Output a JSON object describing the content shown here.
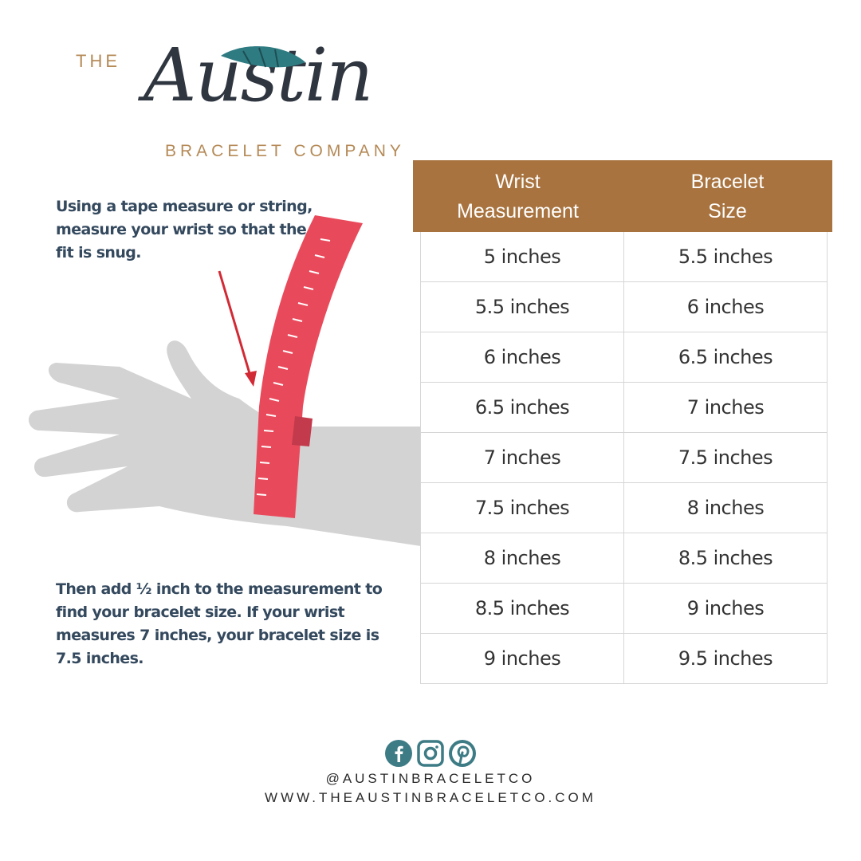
{
  "brand": {
    "the": "THE",
    "name": "Austin",
    "subtitle": "BRACELET COMPANY",
    "accent_color": "#a8733f",
    "teal_color": "#3d7b85"
  },
  "instructions": {
    "step1": "Using a tape measure or string, measure your wrist so that the fit is snug.",
    "step2": "Then add ½ inch to the measurement to find your bracelet size. If your wrist measures 7 inches, your bracelet size is 7.5 inches."
  },
  "table": {
    "headers": [
      {
        "line1": "Wrist",
        "line2": "Measurement"
      },
      {
        "line1": "Bracelet",
        "line2": "Size"
      }
    ],
    "rows": [
      [
        "5 inches",
        "5.5 inches"
      ],
      [
        "5.5 inches",
        "6 inches"
      ],
      [
        "6 inches",
        "6.5 inches"
      ],
      [
        "6.5 inches",
        "7 inches"
      ],
      [
        "7 inches",
        "7.5 inches"
      ],
      [
        "7.5 inches",
        "8 inches"
      ],
      [
        "8 inches",
        "8.5 inches"
      ],
      [
        "8.5 inches",
        "9 inches"
      ],
      [
        "9 inches",
        "9.5 inches"
      ]
    ]
  },
  "footer": {
    "icons": [
      "facebook-icon",
      "instagram-icon",
      "pinterest-icon"
    ],
    "handle": "@AUSTINBRACELETCO",
    "website": "WWW.THEAUSTINBRACELETCO.COM"
  }
}
